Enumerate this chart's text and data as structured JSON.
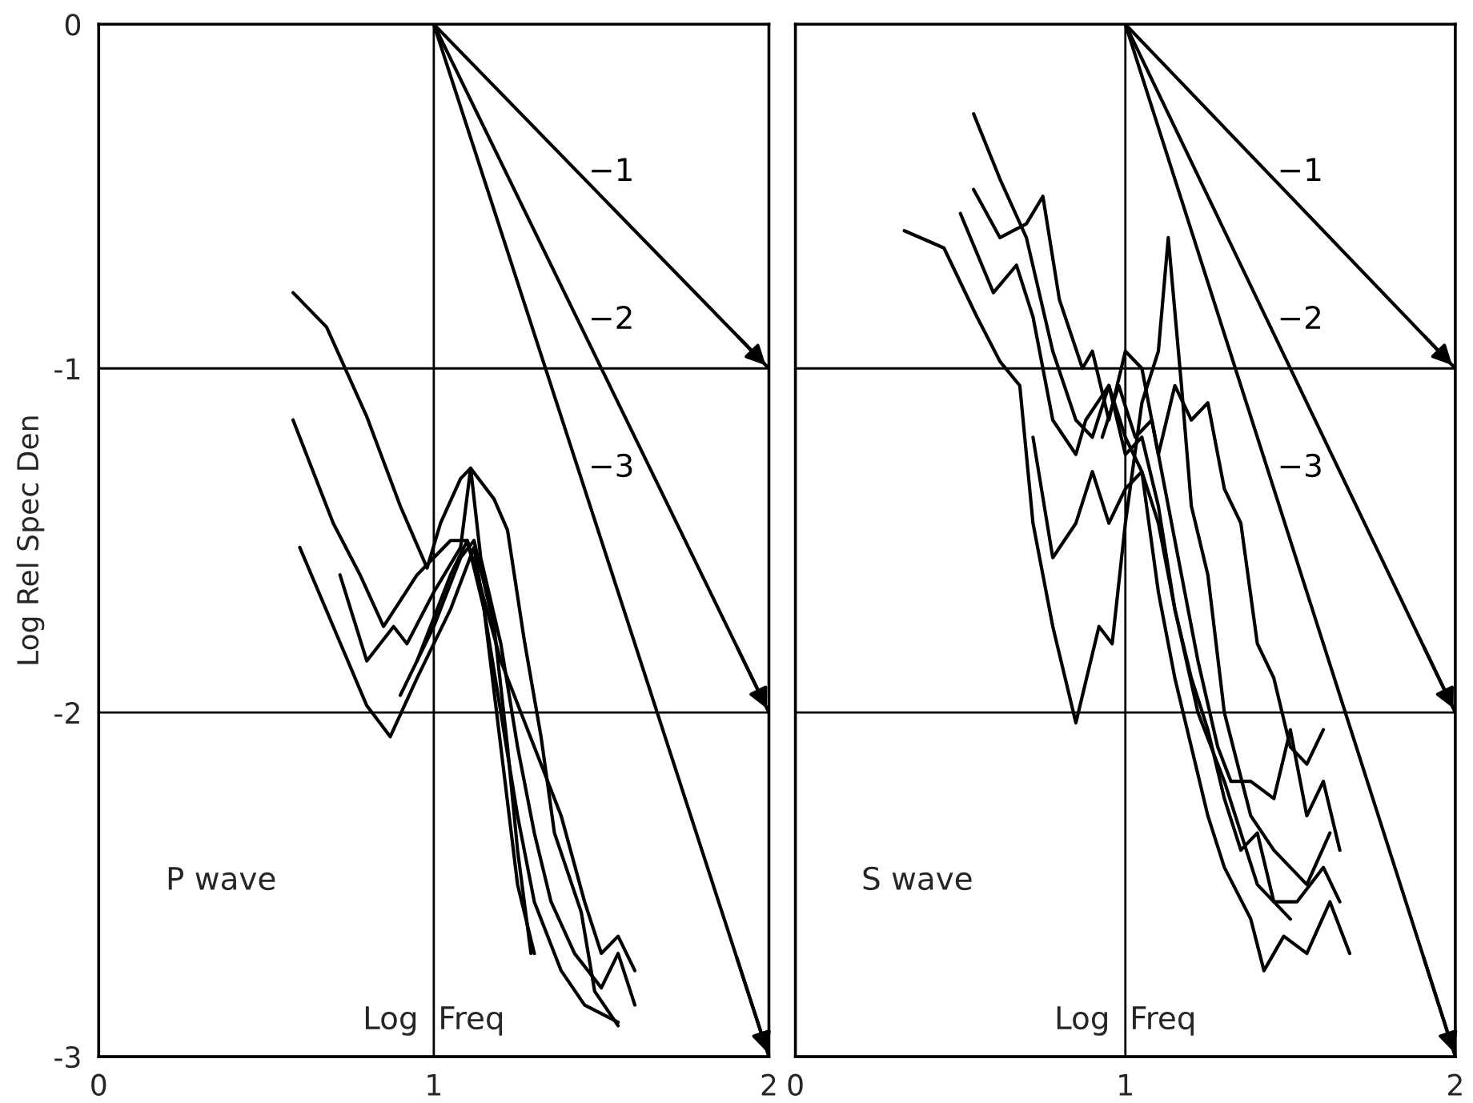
{
  "chart_data": [
    {
      "type": "line",
      "xlabel": "Log  Freq",
      "ylabel": "Log Rel Spec Den",
      "annotations": [
        "P wave"
      ],
      "xlim": [
        0,
        2
      ],
      "ylim": [
        -3,
        0
      ],
      "xticks": [
        0,
        1,
        2
      ],
      "yticks": [
        0,
        -1,
        -2,
        -3
      ],
      "grid": true,
      "legend": false,
      "series": [
        {
          "name": "−1",
          "color": "#000000",
          "x": [
            1,
            2
          ],
          "values": [
            0,
            -1
          ]
        },
        {
          "name": "−2",
          "color": "#000000",
          "x": [
            1,
            2
          ],
          "values": [
            0,
            -2
          ]
        },
        {
          "name": "−3",
          "color": "#000000",
          "x": [
            1,
            2
          ],
          "values": [
            0,
            -3
          ]
        },
        {
          "color": "#000000",
          "x": [
            0.58,
            0.68,
            0.8,
            0.9,
            0.98,
            1.02,
            1.08,
            1.11,
            1.18,
            1.22,
            1.27,
            1.32,
            1.36,
            1.44,
            1.48,
            1.55
          ],
          "values": [
            -0.78,
            -0.88,
            -1.14,
            -1.4,
            -1.58,
            -1.45,
            -1.32,
            -1.29,
            -1.38,
            -1.47,
            -1.79,
            -2.07,
            -2.35,
            -2.58,
            -2.81,
            -2.91
          ]
        },
        {
          "color": "#000000",
          "x": [
            0.58,
            0.7,
            0.78,
            0.85,
            0.95,
            1.05,
            1.1,
            1.15,
            1.2,
            1.25,
            1.3
          ],
          "values": [
            -1.15,
            -1.45,
            -1.6,
            -1.75,
            -1.6,
            -1.5,
            -1.5,
            -1.7,
            -2.1,
            -2.5,
            -2.7
          ]
        },
        {
          "color": "#000000",
          "x": [
            0.6,
            0.7,
            0.8,
            0.87,
            0.95,
            1.05,
            1.12,
            1.15,
            1.2,
            1.25,
            1.3,
            1.38,
            1.45,
            1.55
          ],
          "values": [
            -1.52,
            -1.75,
            -1.98,
            -2.07,
            -1.9,
            -1.7,
            -1.52,
            -1.7,
            -2.0,
            -2.3,
            -2.55,
            -2.75,
            -2.85,
            -2.9
          ]
        },
        {
          "color": "#000000",
          "x": [
            0.72,
            0.8,
            0.88,
            0.92,
            1.0,
            1.08,
            1.11,
            1.14,
            1.2,
            1.25,
            1.3,
            1.35,
            1.42,
            1.5,
            1.55,
            1.6
          ],
          "values": [
            -1.6,
            -1.85,
            -1.75,
            -1.8,
            -1.65,
            -1.52,
            -1.29,
            -1.55,
            -1.8,
            -2.1,
            -2.35,
            -2.55,
            -2.7,
            -2.8,
            -2.7,
            -2.85
          ]
        },
        {
          "color": "#000000",
          "x": [
            0.9,
            1.0,
            1.08,
            1.12,
            1.18,
            1.22,
            1.25,
            1.29
          ],
          "values": [
            -1.95,
            -1.75,
            -1.55,
            -1.5,
            -1.75,
            -2.1,
            -2.4,
            -2.7
          ]
        },
        {
          "color": "#000000",
          "x": [
            0.95,
            1.05,
            1.1,
            1.13,
            1.2,
            1.3,
            1.38,
            1.45,
            1.5,
            1.55,
            1.6
          ],
          "values": [
            -1.85,
            -1.6,
            -1.5,
            -1.6,
            -1.85,
            -2.1,
            -2.3,
            -2.55,
            -2.7,
            -2.65,
            -2.75
          ]
        }
      ]
    },
    {
      "type": "line",
      "xlabel": "Log  Freq",
      "annotations": [
        "S wave"
      ],
      "xlim": [
        0,
        2
      ],
      "ylim": [
        -3,
        0
      ],
      "xticks": [
        0,
        1,
        2
      ],
      "yticks": [
        0,
        -1,
        -2,
        -3
      ],
      "grid": true,
      "legend": false,
      "tick_labels": "x",
      "series": [
        {
          "name": "−1",
          "color": "#000000",
          "x": [
            1,
            2
          ],
          "values": [
            0,
            -1
          ]
        },
        {
          "name": "−2",
          "color": "#000000",
          "x": [
            1,
            2
          ],
          "values": [
            0,
            -2
          ]
        },
        {
          "name": "−3",
          "color": "#000000",
          "x": [
            1,
            2
          ],
          "values": [
            0,
            -3
          ]
        },
        {
          "color": "#000000",
          "x": [
            0.54,
            0.62,
            0.7,
            0.78,
            0.85,
            0.9,
            0.95,
            1.0,
            1.05,
            1.1,
            1.15,
            1.22,
            1.3,
            1.4,
            1.5
          ],
          "values": [
            -0.26,
            -0.45,
            -0.62,
            -0.95,
            -1.15,
            -1.2,
            -1.05,
            -1.2,
            -1.3,
            -1.45,
            -1.7,
            -2.0,
            -2.2,
            -2.5,
            -2.6
          ]
        },
        {
          "color": "#000000",
          "x": [
            0.33,
            0.45,
            0.55,
            0.62,
            0.68,
            0.72,
            0.78,
            0.85,
            0.92,
            0.96,
            1.0,
            1.05,
            1.1,
            1.13,
            1.17,
            1.2,
            1.25,
            1.3,
            1.38,
            1.45,
            1.55,
            1.62
          ],
          "values": [
            -0.6,
            -0.65,
            -0.85,
            -0.98,
            -1.05,
            -1.45,
            -1.75,
            -2.03,
            -1.75,
            -1.8,
            -1.45,
            -1.1,
            -0.95,
            -0.62,
            -1.05,
            -1.4,
            -1.6,
            -2.0,
            -2.3,
            -2.4,
            -2.5,
            -2.35
          ]
        },
        {
          "color": "#000000",
          "x": [
            0.54,
            0.62,
            0.7,
            0.75,
            0.8,
            0.87,
            0.9,
            0.95,
            1.0,
            1.05,
            1.1,
            1.15,
            1.2,
            1.25,
            1.3,
            1.35,
            1.4,
            1.45,
            1.5,
            1.55,
            1.6
          ],
          "values": [
            -0.48,
            -0.62,
            -0.58,
            -0.5,
            -0.8,
            -1.0,
            -0.95,
            -1.15,
            -0.95,
            -1.0,
            -1.25,
            -1.05,
            -1.15,
            -1.1,
            -1.35,
            -1.45,
            -1.8,
            -1.9,
            -2.1,
            -2.15,
            -2.05
          ]
        },
        {
          "color": "#000000",
          "x": [
            0.5,
            0.6,
            0.67,
            0.72,
            0.78,
            0.85,
            0.88,
            0.95,
            1.0,
            1.05,
            1.1,
            1.15,
            1.2,
            1.25,
            1.3,
            1.35,
            1.4,
            1.45,
            1.52,
            1.6,
            1.65
          ],
          "values": [
            -0.55,
            -0.78,
            -0.7,
            -0.85,
            -1.15,
            -1.25,
            -1.15,
            -1.05,
            -1.25,
            -1.2,
            -1.4,
            -1.7,
            -1.9,
            -2.05,
            -2.25,
            -2.4,
            -2.35,
            -2.55,
            -2.55,
            -2.45,
            -2.55
          ]
        },
        {
          "color": "#000000",
          "x": [
            0.72,
            0.78,
            0.85,
            0.9,
            0.95,
            1.0,
            1.05,
            1.1,
            1.15,
            1.2,
            1.25,
            1.3,
            1.38,
            1.42,
            1.48,
            1.55,
            1.62,
            1.68
          ],
          "values": [
            -1.2,
            -1.55,
            -1.45,
            -1.3,
            -1.45,
            -1.35,
            -1.3,
            -1.65,
            -1.9,
            -2.1,
            -2.3,
            -2.45,
            -2.6,
            -2.75,
            -2.65,
            -2.7,
            -2.55,
            -2.7
          ]
        },
        {
          "color": "#000000",
          "x": [
            0.93,
            0.98,
            1.03,
            1.08,
            1.12,
            1.17,
            1.22,
            1.28,
            1.32,
            1.38,
            1.45,
            1.5,
            1.55,
            1.6,
            1.65
          ],
          "values": [
            -1.2,
            -1.05,
            -1.2,
            -1.15,
            -1.35,
            -1.6,
            -1.85,
            -2.1,
            -2.2,
            -2.2,
            -2.25,
            -2.05,
            -2.3,
            -2.2,
            -2.4
          ]
        }
      ]
    }
  ]
}
